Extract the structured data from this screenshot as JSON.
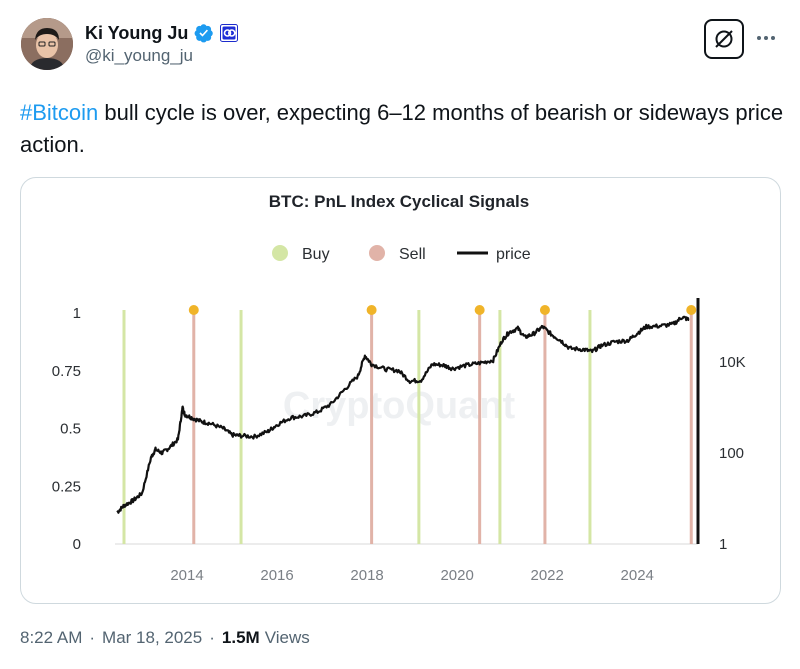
{
  "author": {
    "display_name": "Ki Young Ju",
    "handle": "@ki_young_ju",
    "verified_badge_icon": "verified-check-icon",
    "affiliate_badge_icon": "cryptoquant-logo-icon",
    "badge_color": "#1d9bf0"
  },
  "actions": {
    "grok_icon": "grok-icon",
    "more_icon": "more-dots-icon"
  },
  "tweet": {
    "hashtag": "#Bitcoin",
    "text": " bull cycle is over, expecting 6–12 months of bearish or sideways price action.",
    "link_color": "#1d9bf0"
  },
  "meta": {
    "time": "8:22 AM",
    "date": "Mar 18, 2025",
    "views_count": "1.5M",
    "views_label": "Views"
  },
  "chart_data": {
    "type": "line",
    "title": "BTC: PnL Index Cyclical Signals",
    "watermark": "CryptoQuant",
    "legend": [
      {
        "name": "Buy",
        "kind": "dot",
        "color": "#d4e6a5"
      },
      {
        "name": "Sell",
        "kind": "dot",
        "color": "#e1b3a8"
      },
      {
        "name": "price",
        "kind": "line",
        "color": "#111111"
      }
    ],
    "legend_position": "top-center",
    "x_ticks": [
      "2014",
      "2016",
      "2018",
      "2020",
      "2022",
      "2024"
    ],
    "x_tick_values": [
      2014,
      2016,
      2018,
      2020,
      2022,
      2024
    ],
    "x_range": [
      2012.4,
      2025.35
    ],
    "left_axis": {
      "ticks": [
        "0",
        "0.25",
        "0.5",
        "0.75",
        "1"
      ],
      "tick_values": [
        0,
        0.25,
        0.5,
        0.75,
        1
      ],
      "range": [
        0,
        1
      ]
    },
    "right_axis": {
      "ticks": [
        "1",
        "100",
        "10K"
      ],
      "tick_values": [
        1,
        100,
        10000
      ],
      "scale": "log",
      "range": [
        1,
        120000
      ]
    },
    "buy_signals": [
      2012.6,
      2015.2,
      2019.15,
      2020.95,
      2022.95
    ],
    "sell_signals": [
      2014.15,
      2018.1,
      2020.5,
      2021.95,
      2025.2
    ],
    "signal_markers": [
      2014.15,
      2018.1,
      2020.5,
      2021.95,
      2025.2
    ],
    "marker_color": "#f0b429",
    "series": [
      {
        "name": "price",
        "x": [
          2012.45,
          2012.6,
          2012.8,
          2013.0,
          2013.2,
          2013.3,
          2013.45,
          2013.6,
          2013.8,
          2013.9,
          2013.95,
          2014.1,
          2014.3,
          2014.5,
          2014.8,
          2015.0,
          2015.2,
          2015.5,
          2015.8,
          2016.0,
          2016.3,
          2016.6,
          2016.9,
          2017.2,
          2017.5,
          2017.8,
          2017.95,
          2018.1,
          2018.4,
          2018.7,
          2018.95,
          2019.2,
          2019.45,
          2019.7,
          2019.9,
          2020.2,
          2020.5,
          2020.8,
          2021.0,
          2021.15,
          2021.35,
          2021.5,
          2021.7,
          2021.9,
          2022.1,
          2022.3,
          2022.5,
          2022.8,
          2023.0,
          2023.2,
          2023.5,
          2023.8,
          2024.0,
          2024.2,
          2024.5,
          2024.8,
          2025.0,
          2025.15
        ],
        "values": [
          5,
          7,
          9,
          13,
          80,
          120,
          100,
          130,
          200,
          1000,
          700,
          600,
          500,
          450,
          350,
          250,
          240,
          230,
          300,
          420,
          600,
          650,
          800,
          1200,
          2500,
          5000,
          14000,
          9000,
          7000,
          6500,
          3800,
          4000,
          9000,
          8500,
          7200,
          8500,
          9500,
          11000,
          30000,
          45000,
          55000,
          35000,
          42000,
          60000,
          40000,
          30000,
          20000,
          19000,
          17000,
          23000,
          28000,
          30000,
          43000,
          60000,
          62000,
          68000,
          98000,
          85000
        ]
      }
    ]
  }
}
